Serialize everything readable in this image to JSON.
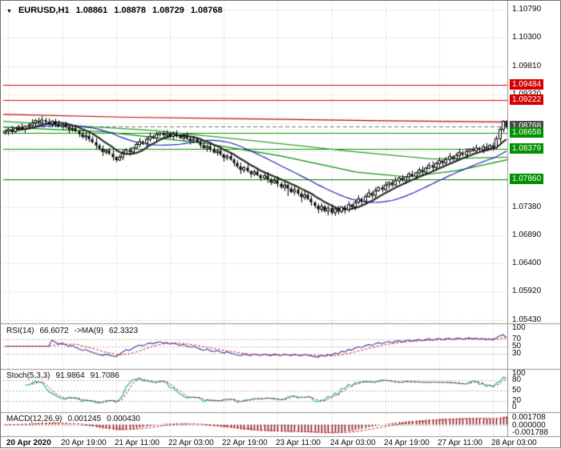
{
  "header": {
    "dropdown_glyph": "▼",
    "symbol_period": "EURUSD,H1",
    "open": "1.08861",
    "high": "1.08878",
    "low": "1.08729",
    "close": "1.08768"
  },
  "price_axis": {
    "ticks": [
      {
        "label": "1.10790",
        "value": 1.1079
      },
      {
        "label": "1.10300",
        "value": 1.103
      },
      {
        "label": "1.09810",
        "value": 1.0981
      },
      {
        "label": "1.09320",
        "value": 1.0932
      },
      {
        "label": null,
        "value": 1.0883
      },
      {
        "label": null,
        "value": 1.0834
      },
      {
        "label": null,
        "value": 1.0785
      },
      {
        "label": "1.07380",
        "value": 1.0738
      },
      {
        "label": "1.06890",
        "value": 1.0689
      },
      {
        "label": "1.06400",
        "value": 1.064
      },
      {
        "label": "1.05920",
        "value": 1.0592
      },
      {
        "label": "1.05430",
        "value": 1.0543
      }
    ],
    "badges": [
      {
        "label": "1.09484",
        "value": 1.09484,
        "bg": "#d40000"
      },
      {
        "label": "1.09222",
        "value": 1.09222,
        "bg": "#d40000"
      },
      {
        "label": "1.08768",
        "value": 1.08768,
        "bg": "#4a4a4a"
      },
      {
        "label": "1.08658",
        "value": 1.08658,
        "bg": "#009000"
      },
      {
        "label": "1.08379",
        "value": 1.08379,
        "bg": "#009000"
      },
      {
        "label": "1.07860",
        "value": 1.0786,
        "bg": "#009000"
      }
    ]
  },
  "time_axis": {
    "labels": [
      "20 Apr 2020",
      "20 Apr 19:00",
      "21 Apr 11:00",
      "22 Apr 03:00",
      "22 Apr 19:00",
      "23 Apr 11:00",
      "24 Apr 03:00",
      "24 Apr 19:00",
      "27 Apr 11:00",
      "28 Apr 03:00"
    ],
    "bars": [
      1,
      17,
      33,
      49,
      65,
      81,
      97,
      113,
      129,
      145
    ]
  },
  "indicators": {
    "rsi": {
      "name": "RSI(14)",
      "value": "66.6072",
      "ma_name": "->MA(9)",
      "ma_value": "62.3323",
      "axis": [
        "100",
        "70",
        "50",
        "30"
      ],
      "axis_values": [
        100,
        70,
        50,
        30
      ],
      "levels": [
        70,
        50,
        30
      ]
    },
    "stoch": {
      "name": "Stoch(5,3,3)",
      "value": "91.9864",
      "signal_value": "91.7086",
      "axis": [
        "100",
        "80",
        "50",
        "20",
        "0"
      ],
      "axis_values": [
        100,
        80,
        50,
        20,
        0
      ],
      "levels": [
        80,
        50,
        20
      ]
    },
    "macd": {
      "name": "MACD(12,26,9)",
      "value": "0.001245",
      "signal_value": "0.000430",
      "axis": [
        "0.001708",
        "0.000000",
        "-0.001788"
      ],
      "axis_values": [
        0.001708,
        0,
        -0.001788
      ]
    }
  },
  "chart_data": {
    "type": "candlestick",
    "symbol": "EURUSD",
    "timeframe": "H1",
    "price_max_visible": 1.109,
    "price_min_visible": 1.0537,
    "levels": {
      "resistance": [
        1.09484,
        1.09222
      ],
      "support": [
        1.08658,
        1.08379,
        1.0786
      ],
      "bid": 1.08768
    },
    "colors": {
      "resistance": "#d40000",
      "support": "#009000",
      "bid": "#707080",
      "grid": "#c8c8c8",
      "bull": "#ffffff",
      "bear": "#000000",
      "wick": "#000000",
      "ma_red": "#c00000",
      "ma_green_fast": "#009000",
      "ma_green_slow": "#2e9e2e",
      "ma_blue": "#2222bb",
      "ma_dark": "#2a2a2a",
      "rsi": "#3a3aa0",
      "rsi_ma": "#cc2222",
      "stoch_k": "#00a8a8",
      "stoch_d": "#cc2222",
      "macd_hist": "#8b1a1a",
      "macd_signal": "#cc2222",
      "level_dash": "#b0b0b0"
    },
    "candles": {
      "first_open": 1.0866,
      "wick_base": 0.00042,
      "closes": [
        1.0869,
        1.0872,
        1.0868,
        1.0874,
        1.0876,
        1.0873,
        1.0877,
        1.0879,
        1.0883,
        1.0887,
        1.0884,
        1.0888,
        1.0885,
        1.0882,
        1.0886,
        1.0881,
        1.0877,
        1.088,
        1.0876,
        1.0872,
        1.0874,
        1.0869,
        1.0864,
        1.0859,
        1.0861,
        1.0855,
        1.085,
        1.0844,
        1.0839,
        1.0833,
        1.0836,
        1.083,
        1.0824,
        1.0819,
        1.0824,
        1.083,
        1.0836,
        1.0833,
        1.084,
        1.0846,
        1.0851,
        1.0848,
        1.0855,
        1.086,
        1.0857,
        1.0863,
        1.0866,
        1.0862,
        1.0865,
        1.086,
        1.0864,
        1.0861,
        1.0857,
        1.086,
        1.0856,
        1.0852,
        1.0855,
        1.085,
        1.0845,
        1.084,
        1.0843,
        1.0837,
        1.0832,
        1.0835,
        1.0829,
        1.0823,
        1.0826,
        1.082,
        1.0814,
        1.0808,
        1.0802,
        1.0806,
        1.08,
        1.0795,
        1.0799,
        1.0793,
        1.0788,
        1.0792,
        1.0786,
        1.078,
        1.0784,
        1.0778,
        1.0772,
        1.0776,
        1.077,
        1.0764,
        1.0768,
        1.0761,
        1.0755,
        1.0759,
        1.0752,
        1.0746,
        1.074,
        1.0734,
        1.0739,
        1.0731,
        1.0736,
        1.0728,
        1.0735,
        1.073,
        1.0738,
        1.0733,
        1.0742,
        1.0738,
        1.0746,
        1.0752,
        1.0748,
        1.0756,
        1.0762,
        1.0758,
        1.0766,
        1.0772,
        1.0768,
        1.0776,
        1.078,
        1.0776,
        1.0783,
        1.0788,
        1.0784,
        1.079,
        1.0795,
        1.0791,
        1.0797,
        1.0802,
        1.0798,
        1.0805,
        1.081,
        1.0806,
        1.0813,
        1.0818,
        1.0814,
        1.082,
        1.0825,
        1.0821,
        1.0827,
        1.0832,
        1.0828,
        1.0834,
        1.0838,
        1.0835,
        1.084,
        1.0837,
        1.0842,
        1.0839,
        1.0844,
        1.0841,
        1.0856,
        1.0872,
        1.08861,
        1.08768
      ],
      "high_overrides": {
        "11": 1.0895,
        "146": 1.0861,
        "147": 1.0877,
        "148": 1.0888,
        "149": 1.08878
      },
      "low_overrides": {
        "84": 1.0757,
        "88": 1.0746,
        "93": 1.0727,
        "96": 1.07235,
        "98": 1.07225,
        "101": 1.0726,
        "149": 1.08729
      }
    },
    "ma_anchor_lines": [
      {
        "name": "ma-red",
        "color_key": "ma_red",
        "width": 1.2,
        "points": [
          [
            0,
            1.0898
          ],
          [
            0.25,
            1.0893
          ],
          [
            0.5,
            1.089
          ],
          [
            0.75,
            1.0887
          ],
          [
            1,
            1.0885
          ]
        ]
      },
      {
        "name": "ma-green-slow",
        "color_key": "ma_green_slow",
        "width": 1.2,
        "points": [
          [
            0,
            1.0886
          ],
          [
            0.3,
            1.087
          ],
          [
            0.5,
            1.0852
          ],
          [
            0.7,
            1.0833
          ],
          [
            0.85,
            1.0821
          ],
          [
            1,
            1.0824
          ]
        ]
      },
      {
        "name": "ma-green-fast",
        "color_key": "ma_green_fast",
        "width": 1.2,
        "points": [
          [
            0,
            1.0876
          ],
          [
            0.2,
            1.0868
          ],
          [
            0.4,
            1.0848
          ],
          [
            0.55,
            1.0826
          ],
          [
            0.7,
            1.0798
          ],
          [
            0.8,
            1.079
          ],
          [
            0.9,
            1.0801
          ],
          [
            1,
            1.082
          ]
        ]
      }
    ],
    "computed_ma": [
      {
        "period": 25,
        "color_key": "ma_blue",
        "width": 1.2
      },
      {
        "period": 9,
        "color_key": "ma_dark",
        "width": 2.2
      }
    ],
    "indicator_params": {
      "rsi_period": 14,
      "rsi_ma_period": 9,
      "stoch": [
        5,
        3,
        3
      ],
      "macd": [
        12,
        26,
        9
      ]
    }
  }
}
